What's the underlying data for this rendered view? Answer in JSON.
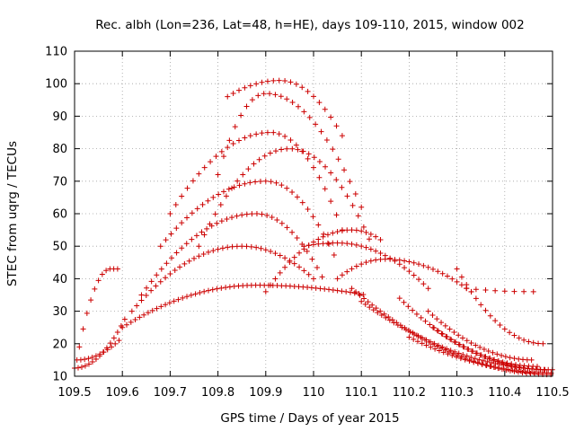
{
  "chart_data": {
    "type": "scatter",
    "title": "Rec. albh (Lon=236, Lat=48, h=HE), days 109-110, 2015, window 002",
    "xlabel": "GPS time / Days of year 2015",
    "ylabel": "STEC from uqrg / TECUs",
    "xlim": [
      109.5,
      110.5
    ],
    "ylim": [
      10,
      110
    ],
    "xticks": [
      "109.5",
      "109.6",
      "109.7",
      "109.8",
      "109.9",
      "110",
      "110.1",
      "110.2",
      "110.3",
      "110.4",
      "110.5"
    ],
    "yticks": [
      "10",
      "20",
      "30",
      "40",
      "50",
      "60",
      "70",
      "80",
      "90",
      "100",
      "110"
    ],
    "grid": true,
    "marker": "plus",
    "color": "#cc0000",
    "arcs": [
      {
        "x0": 109.5,
        "x1": 109.61,
        "y0": 12.5,
        "y1": 29.0,
        "peak": 29.0,
        "px": 109.61,
        "step": 0.0075
      },
      {
        "x0": 109.505,
        "x1": 109.6,
        "y0": 15.0,
        "y1": 22.0,
        "peak": 22.0,
        "px": 109.6,
        "step": 0.008
      },
      {
        "x0": 109.51,
        "x1": 109.59,
        "y0": 19.0,
        "y1": 43.0,
        "peak": 43.0,
        "px": 109.575,
        "step": 0.008
      },
      {
        "x0": 109.6,
        "x1": 110.11,
        "y0": 25.0,
        "y1": 35.0,
        "peak": 38.0,
        "px": 109.88,
        "step": 0.009
      },
      {
        "x0": 109.62,
        "x1": 110.0,
        "y0": 30.0,
        "y1": 40.0,
        "peak": 50.0,
        "px": 109.85,
        "step": 0.01
      },
      {
        "x0": 109.64,
        "x1": 110.02,
        "y0": 35.0,
        "y1": 40.0,
        "peak": 60.0,
        "px": 109.88,
        "step": 0.0105
      },
      {
        "x0": 109.68,
        "x1": 110.05,
        "y0": 50.0,
        "y1": 45.0,
        "peak": 70.0,
        "px": 109.9,
        "step": 0.011
      },
      {
        "x0": 109.7,
        "x1": 110.06,
        "y0": 60.0,
        "y1": 55.0,
        "peak": 85.0,
        "px": 109.91,
        "step": 0.012
      },
      {
        "x0": 109.82,
        "x1": 110.06,
        "y0": 96.0,
        "y1": 84.0,
        "peak": 101.0,
        "px": 109.93,
        "step": 0.012
      },
      {
        "x0": 109.8,
        "x1": 110.1,
        "y0": 72.0,
        "y1": 62.0,
        "peak": 97.0,
        "px": 109.9,
        "step": 0.012
      },
      {
        "x0": 109.76,
        "x1": 110.12,
        "y0": 50.0,
        "y1": 51.0,
        "peak": 80.0,
        "px": 109.95,
        "step": 0.0115
      },
      {
        "x0": 109.9,
        "x1": 110.14,
        "y0": 36.0,
        "y1": 52.0,
        "peak": 55.0,
        "px": 110.08,
        "step": 0.01
      },
      {
        "x0": 109.98,
        "x1": 110.24,
        "y0": 50.0,
        "y1": 37.0,
        "peak": 51.0,
        "px": 110.05,
        "step": 0.01
      },
      {
        "x0": 110.05,
        "x1": 110.33,
        "y0": 40.0,
        "y1": 36.0,
        "peak": 46.0,
        "px": 110.15,
        "step": 0.01
      },
      {
        "x0": 110.08,
        "x1": 110.5,
        "y0": 37.0,
        "y1": 10.5,
        "peak": 37.0,
        "px": 110.08,
        "step": 0.0085
      },
      {
        "x0": 110.1,
        "x1": 110.5,
        "y0": 33.0,
        "y1": 12.0,
        "peak": 33.0,
        "px": 110.1,
        "step": 0.0085
      },
      {
        "x0": 110.18,
        "x1": 110.47,
        "y0": 34.0,
        "y1": 13.0,
        "peak": 34.0,
        "px": 110.18,
        "step": 0.009
      },
      {
        "x0": 110.24,
        "x1": 110.46,
        "y0": 30.0,
        "y1": 15.0,
        "peak": 30.0,
        "px": 110.24,
        "step": 0.009
      },
      {
        "x0": 110.3,
        "x1": 110.48,
        "y0": 43.0,
        "y1": 20.0,
        "peak": 43.0,
        "px": 110.3,
        "step": 0.01
      },
      {
        "x0": 110.32,
        "x1": 110.46,
        "y0": 37.0,
        "y1": 36.0,
        "peak": 37.0,
        "px": 110.32,
        "step": 0.02
      },
      {
        "x0": 110.25,
        "x1": 110.49,
        "y0": 25.0,
        "y1": 12.0,
        "peak": 25.0,
        "px": 110.25,
        "step": 0.009
      },
      {
        "x0": 110.2,
        "x1": 110.5,
        "y0": 22.0,
        "y1": 11.0,
        "peak": 22.0,
        "px": 110.2,
        "step": 0.009
      }
    ]
  }
}
